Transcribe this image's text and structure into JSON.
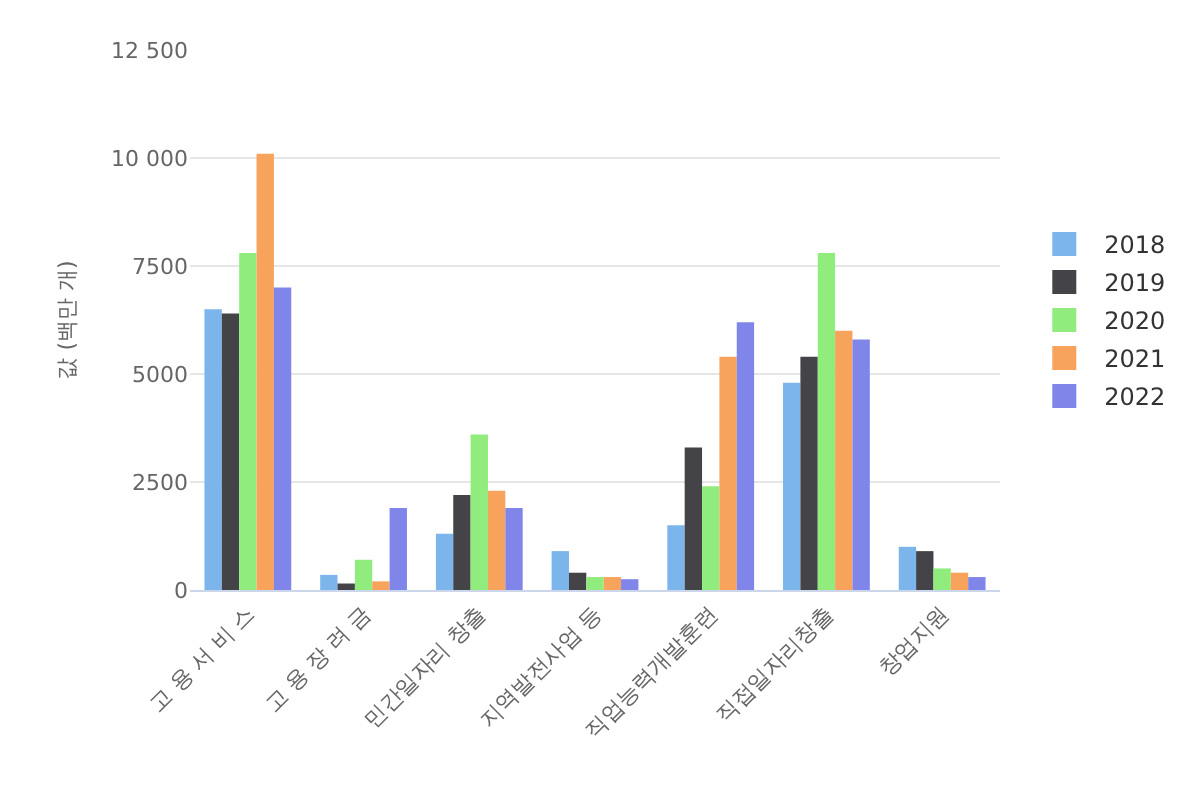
{
  "chart_data": {
    "type": "bar",
    "ylabel": "값 (백만 개)",
    "categories": [
      "고 용 서 비 스",
      "고 용 장 려 금",
      "민간일자리 창출",
      "지역발전사업 등",
      "직업능력개발훈련",
      "직접일자리창출",
      "창업지원"
    ],
    "series": [
      {
        "name": "2018",
        "color": "#7cb5ec",
        "values": [
          6500,
          350,
          1300,
          900,
          1500,
          4800,
          1000
        ]
      },
      {
        "name": "2019",
        "color": "#434348",
        "values": [
          6400,
          150,
          2200,
          400,
          3300,
          5400,
          900
        ]
      },
      {
        "name": "2020",
        "color": "#90ed7d",
        "values": [
          7800,
          700,
          3600,
          300,
          2400,
          7800,
          500
        ]
      },
      {
        "name": "2021",
        "color": "#f7a35c",
        "values": [
          10100,
          200,
          2300,
          300,
          5400,
          6000,
          400
        ]
      },
      {
        "name": "2022",
        "color": "#8085e9",
        "values": [
          7000,
          1900,
          1900,
          250,
          6200,
          5800,
          300
        ]
      }
    ],
    "ylim": [
      0,
      12500
    ],
    "yticks": [
      0,
      2500,
      5000,
      7500,
      {
        "value": 10000,
        "label": "10 000"
      },
      {
        "value": 12500,
        "label": "12 500"
      }
    ],
    "grid": "y",
    "legend": "right"
  }
}
